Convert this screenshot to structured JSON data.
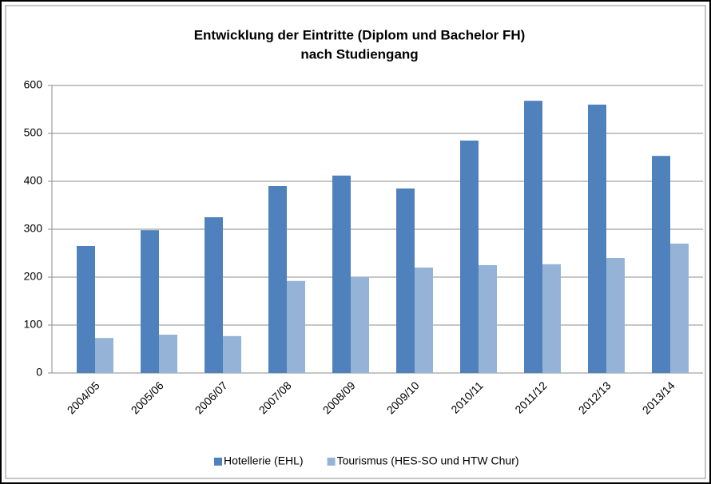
{
  "chart_data": {
    "type": "bar",
    "title": [
      "Entwicklung der Eintritte (Diplom und Bachelor FH)",
      "nach Studiengang"
    ],
    "categories": [
      "2004/05",
      "2005/06",
      "2006/07",
      "2007/08",
      "2008/09",
      "2009/10",
      "2010/11",
      "2011/12",
      "2012/13",
      "2013/14"
    ],
    "series": [
      {
        "name": "Hotellerie (EHL)",
        "color": "#4f81bd",
        "values": [
          265,
          298,
          325,
          390,
          412,
          385,
          485,
          568,
          560,
          453
        ]
      },
      {
        "name": "Tourismus (HES-SO und HTW Chur)",
        "color": "#95b3d7",
        "values": [
          73,
          80,
          77,
          192,
          200,
          220,
          225,
          227,
          240,
          270
        ]
      }
    ],
    "ylim": [
      0,
      600
    ],
    "yticks": [
      0,
      100,
      200,
      300,
      400,
      500,
      600
    ],
    "grid": true,
    "legend": "bottom"
  }
}
